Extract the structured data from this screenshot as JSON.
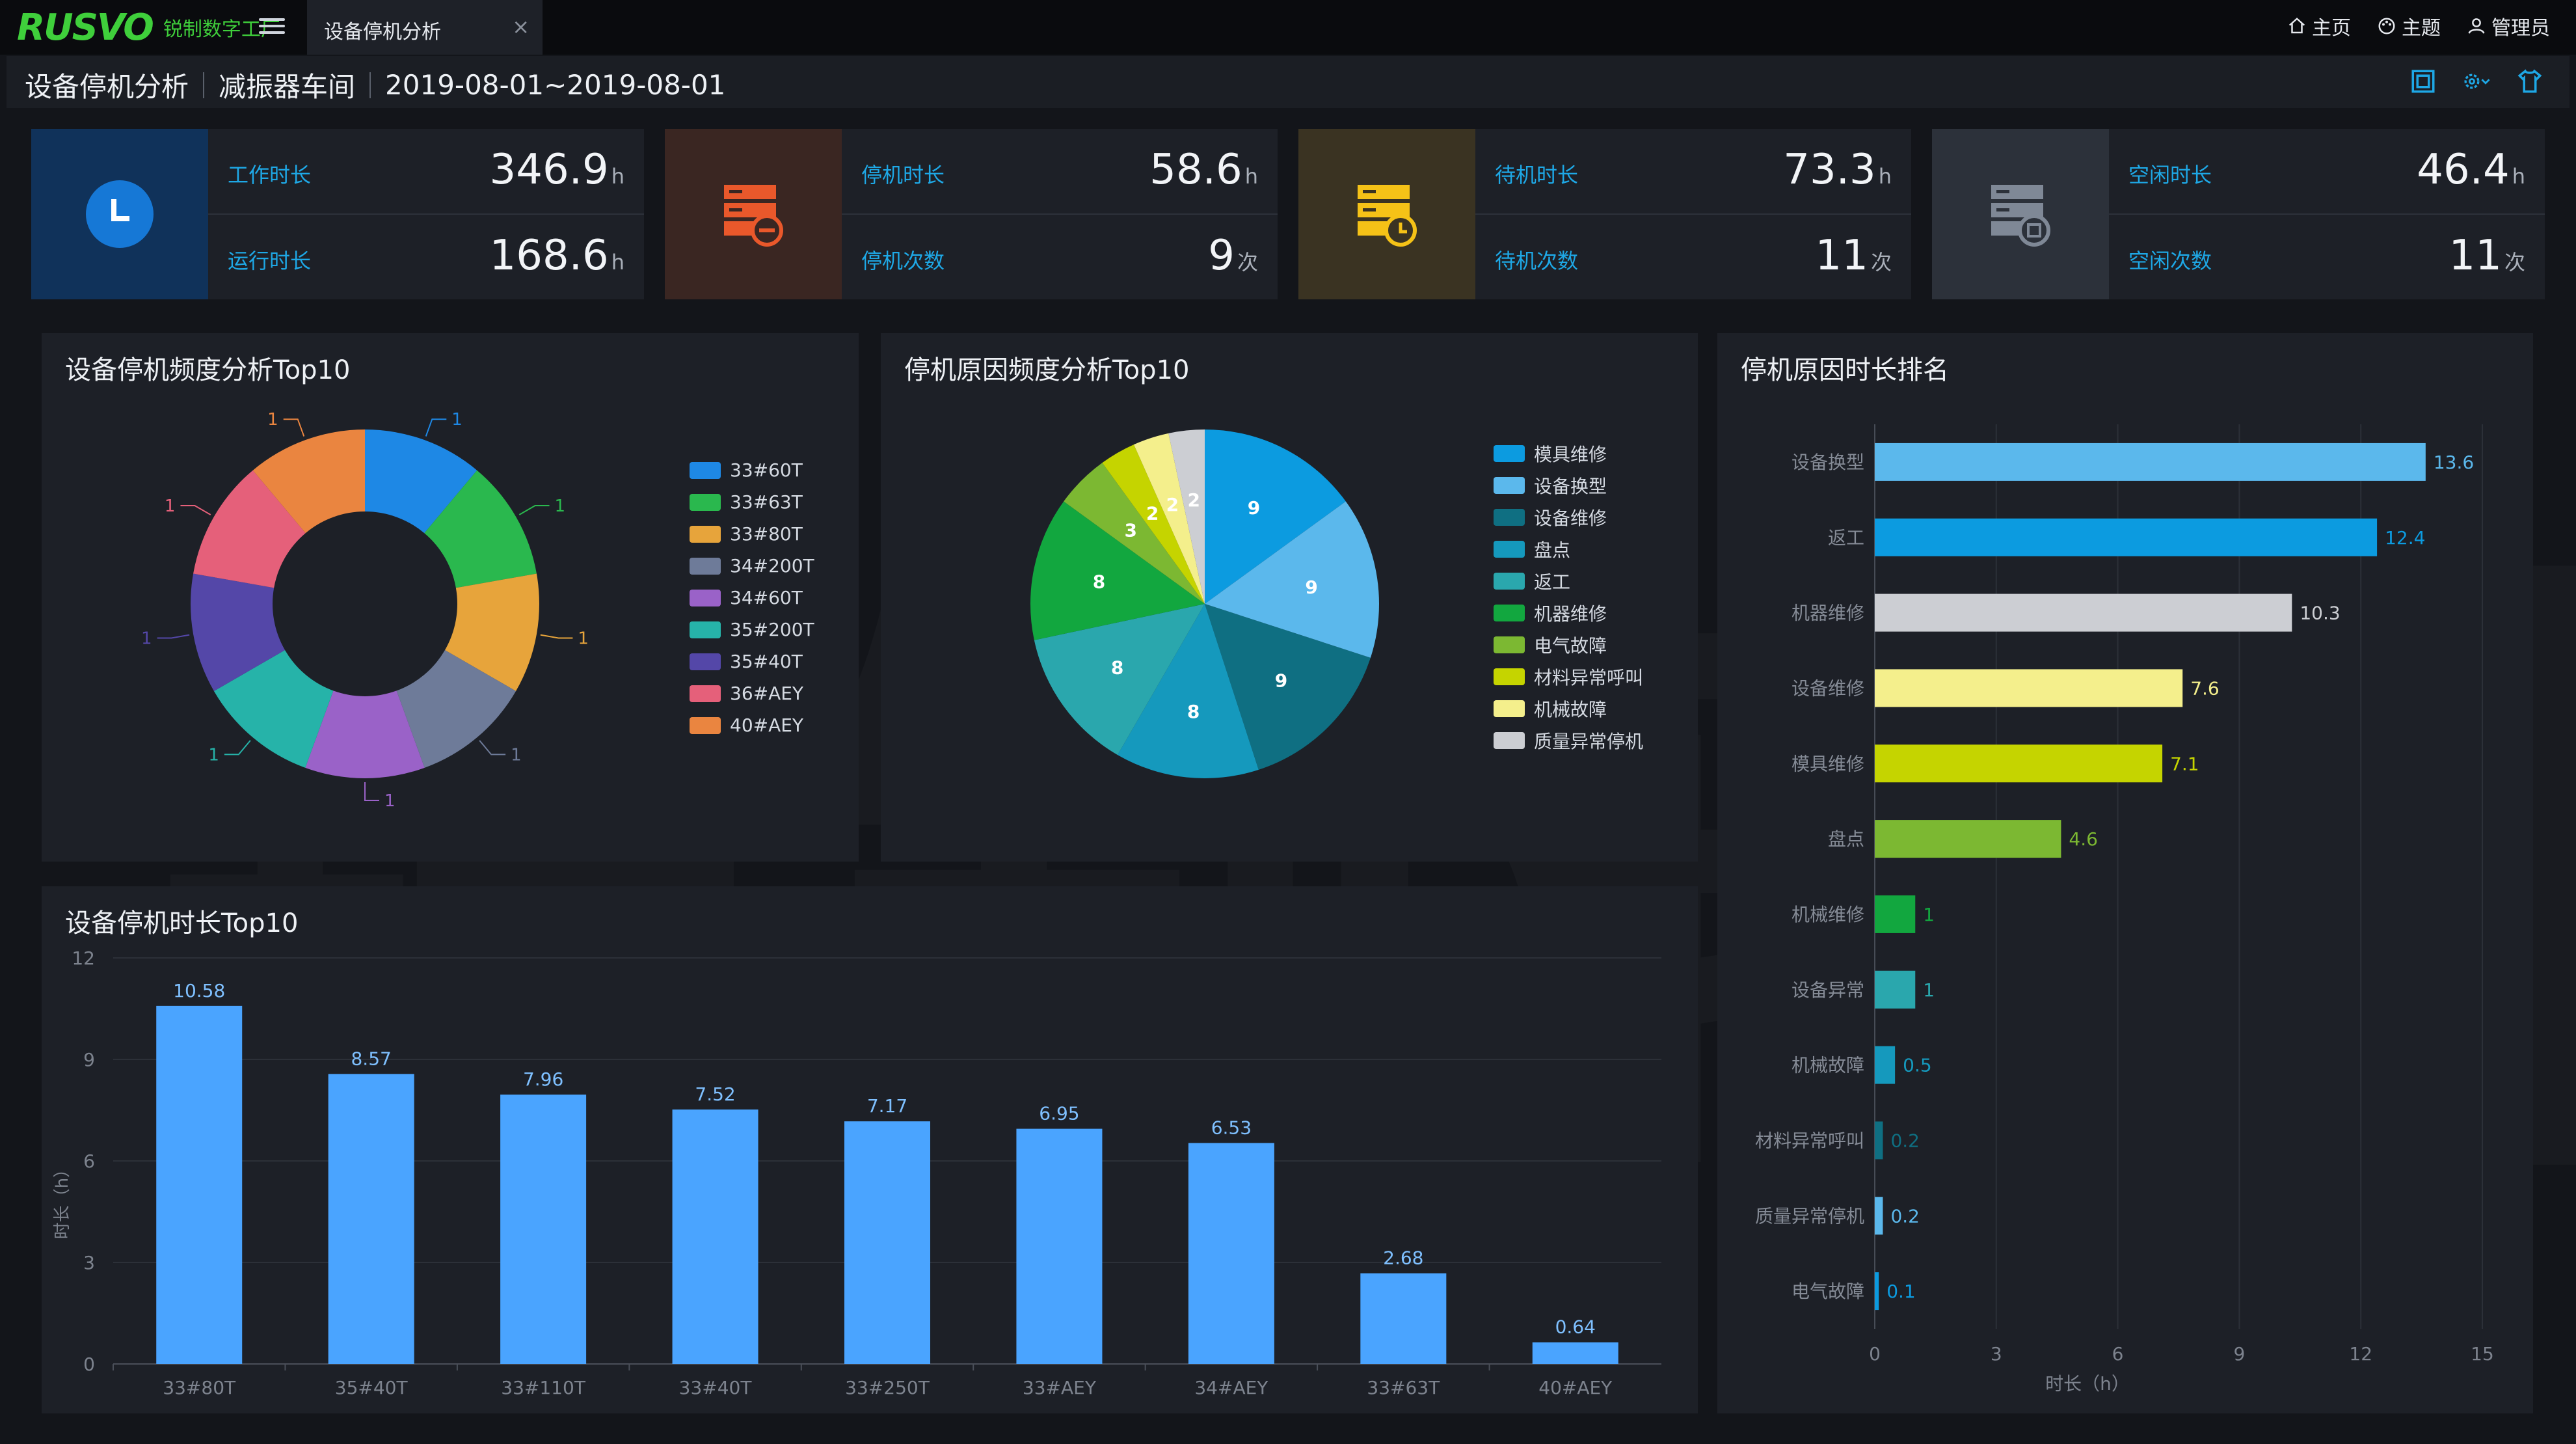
{
  "header": {
    "logo_text": "RUSVO",
    "logo_subtitle": "锐制数字工厂",
    "tab_label": "设备停机分析",
    "tab_close": "×",
    "nav": [
      {
        "label": "主页",
        "icon": "home-icon"
      },
      {
        "label": "主题",
        "icon": "palette-icon"
      },
      {
        "label": "管理员",
        "icon": "user-icon"
      }
    ]
  },
  "subheader": {
    "page_title": "设备停机分析",
    "workshop": "减振器车间",
    "date_range": "2019-08-01~2019-08-01",
    "icons": [
      "export-icon",
      "settings-icon",
      "shirt-icon"
    ]
  },
  "watermark": "锐制软件",
  "kpis": [
    {
      "icon": "clock-icon",
      "icon_bg": "#10325a",
      "icon_color": "#1e7fd8",
      "rows": [
        {
          "label": "工作时长",
          "value": "346.9",
          "unit": "h"
        },
        {
          "label": "运行时长",
          "value": "168.6",
          "unit": "h"
        }
      ]
    },
    {
      "icon": "server-stop-icon",
      "icon_bg": "#3a2622",
      "icon_color": "#e9582b",
      "rows": [
        {
          "label": "停机时长",
          "value": "58.6",
          "unit": "h"
        },
        {
          "label": "停机次数",
          "value": "9",
          "unit": "次"
        }
      ]
    },
    {
      "icon": "server-clock-icon",
      "icon_bg": "#3a3322",
      "icon_color": "#f5c217",
      "rows": [
        {
          "label": "待机时长",
          "value": "73.3",
          "unit": "h"
        },
        {
          "label": "待机次数",
          "value": "11",
          "unit": "次"
        }
      ]
    },
    {
      "icon": "server-idle-icon",
      "icon_bg": "#2c313a",
      "icon_color": "#7f8896",
      "rows": [
        {
          "label": "空闲时长",
          "value": "46.4",
          "unit": "h"
        },
        {
          "label": "空闲次数",
          "value": "11",
          "unit": "次"
        }
      ]
    }
  ],
  "panels": {
    "freq_title": "设备停机频度分析Top10",
    "reason_title": "停机原因频度分析Top10",
    "rank_title": "停机原因时长排名",
    "duration_title": "设备停机时长Top10"
  },
  "chart_data": [
    {
      "type": "pie",
      "variant": "donut",
      "title": "设备停机频度分析Top10",
      "categories": [
        "33#60T",
        "33#63T",
        "33#80T",
        "34#200T",
        "34#60T",
        "35#200T",
        "35#40T",
        "36#AEY",
        "40#AEY"
      ],
      "values": [
        1,
        1,
        1,
        1,
        1,
        1,
        1,
        1,
        1
      ],
      "colors": [
        "#1e88e5",
        "#2ab84e",
        "#e7a43b",
        "#6e7b99",
        "#9a62c8",
        "#26b3a9",
        "#5447a8",
        "#e5607a",
        "#ea8540"
      ],
      "legend": "right"
    },
    {
      "type": "pie",
      "title": "停机原因频度分析Top10",
      "categories": [
        "模具维修",
        "设备换型",
        "设备维修",
        "盘点",
        "返工",
        "机器维修",
        "电气故障",
        "材料异常呼叫",
        "机械故障",
        "质量异常停机"
      ],
      "values": [
        9,
        9,
        9,
        8,
        8,
        8,
        3,
        2,
        2,
        2
      ],
      "colors": [
        "#0c9be0",
        "#5bb8ec",
        "#0f6f82",
        "#1599bd",
        "#2aa7ad",
        "#12a73f",
        "#7cb832",
        "#c5d400",
        "#f4ef8c",
        "#ccced3"
      ],
      "legend": "right"
    },
    {
      "type": "bar",
      "orientation": "horizontal",
      "title": "停机原因时长排名",
      "categories": [
        "设备换型",
        "返工",
        "机器维修",
        "设备维修",
        "模具维修",
        "盘点",
        "机械维修",
        "设备异常",
        "机械故障",
        "材料异常呼叫",
        "质量异常停机",
        "电气故障"
      ],
      "values": [
        13.6,
        12.4,
        10.3,
        7.6,
        7.1,
        4.6,
        1,
        1,
        0.5,
        0.2,
        0.2,
        0.1
      ],
      "colors": [
        "#5bb8ec",
        "#0c9be0",
        "#ccced3",
        "#f4ef8c",
        "#c5d400",
        "#7cb832",
        "#12a73f",
        "#2aa7ad",
        "#1599bd",
        "#0f6f82",
        "#5bb8ec",
        "#0c9be0"
      ],
      "xlabel": "时长（h）",
      "xlim": [
        0,
        15
      ],
      "xticks": [
        0,
        3,
        6,
        9,
        12,
        15
      ],
      "grid": true
    },
    {
      "type": "bar",
      "title": "设备停机时长Top10",
      "categories": [
        "33#80T",
        "35#40T",
        "33#110T",
        "33#40T",
        "33#250T",
        "33#AEY",
        "34#AEY",
        "33#63T",
        "40#AEY"
      ],
      "values": [
        10.58,
        8.57,
        7.96,
        7.52,
        7.17,
        6.95,
        6.53,
        2.68,
        0.64
      ],
      "color": "#4aa4ff",
      "ylabel": "时长（h）",
      "ylim": [
        0,
        12
      ],
      "yticks": [
        0,
        3,
        6,
        9,
        12
      ],
      "grid": true
    }
  ]
}
